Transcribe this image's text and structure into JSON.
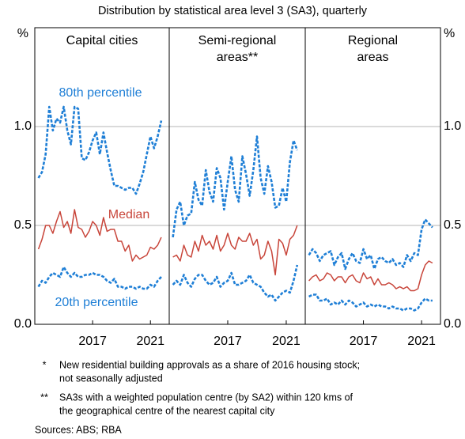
{
  "subtitle": "Distribution by statistical area level 3 (SA3), quarterly",
  "notes": [
    {
      "marker": "*",
      "lines": [
        "New residential building approvals as a share of 2016 housing stock;",
        "not seasonally adjusted"
      ]
    },
    {
      "marker": "**",
      "lines": [
        "SA3s with a weighted population centre (by SA2) within 120 kms of",
        "the geographical centre of the nearest capital city"
      ]
    }
  ],
  "sources": "Sources: ABS; RBA",
  "chart_data": [
    {
      "type": "line",
      "title": [
        "Capital cities"
      ],
      "y_unit": "%",
      "x": [
        2013.25,
        2013.5,
        2013.75,
        2014,
        2014.25,
        2014.5,
        2014.75,
        2015,
        2015.25,
        2015.5,
        2015.75,
        2016,
        2016.25,
        2016.5,
        2016.75,
        2017,
        2017.25,
        2017.5,
        2017.75,
        2018,
        2018.25,
        2018.5,
        2018.75,
        2019,
        2019.25,
        2019.5,
        2019.75,
        2020,
        2020.25,
        2020.5,
        2020.75,
        2021,
        2021.25,
        2021.5,
        2021.75
      ],
      "xlim": [
        2013.0,
        2022.3
      ],
      "xticks": [
        2017,
        2021
      ],
      "ylim": [
        0,
        1.5
      ],
      "yticks": [
        {
          "value": 0,
          "label": "0.0"
        },
        0.5,
        {
          "value": 1,
          "label": "1.0"
        }
      ],
      "series": [
        {
          "name": "80th percentile",
          "color": "#1f7fd6",
          "style": "dashed",
          "values": [
            0.74,
            0.77,
            0.86,
            1.1,
            0.98,
            1.04,
            1.02,
            1.1,
            0.98,
            0.91,
            1.1,
            1.09,
            0.84,
            0.83,
            0.87,
            0.93,
            0.97,
            0.86,
            0.97,
            0.87,
            0.78,
            0.7,
            0.7,
            0.69,
            0.68,
            0.69,
            0.69,
            0.66,
            0.71,
            0.77,
            0.86,
            0.95,
            0.89,
            0.95,
            1.03
          ]
        },
        {
          "name": "Median",
          "color": "#c8453a",
          "style": "solid",
          "values": [
            0.38,
            0.43,
            0.5,
            0.5,
            0.46,
            0.52,
            0.57,
            0.49,
            0.52,
            0.46,
            0.58,
            0.49,
            0.48,
            0.44,
            0.47,
            0.52,
            0.5,
            0.45,
            0.54,
            0.47,
            0.48,
            0.48,
            0.42,
            0.42,
            0.37,
            0.4,
            0.32,
            0.35,
            0.33,
            0.34,
            0.35,
            0.39,
            0.38,
            0.4,
            0.44
          ]
        },
        {
          "name": "20th percentile",
          "color": "#1f7fd6",
          "style": "dashed",
          "values": [
            0.19,
            0.22,
            0.21,
            0.24,
            0.26,
            0.25,
            0.24,
            0.29,
            0.26,
            0.24,
            0.26,
            0.24,
            0.24,
            0.25,
            0.25,
            0.26,
            0.25,
            0.25,
            0.24,
            0.22,
            0.21,
            0.23,
            0.19,
            0.19,
            0.18,
            0.19,
            0.19,
            0.18,
            0.19,
            0.18,
            0.18,
            0.2,
            0.19,
            0.22,
            0.24
          ]
        }
      ]
    },
    {
      "type": "line",
      "title": [
        "Semi-regional",
        "areas**"
      ],
      "x": [
        2013.25,
        2013.5,
        2013.75,
        2014,
        2014.25,
        2014.5,
        2014.75,
        2015,
        2015.25,
        2015.5,
        2015.75,
        2016,
        2016.25,
        2016.5,
        2016.75,
        2017,
        2017.25,
        2017.5,
        2017.75,
        2018,
        2018.25,
        2018.5,
        2018.75,
        2019,
        2019.25,
        2019.5,
        2019.75,
        2020,
        2020.25,
        2020.5,
        2020.75,
        2021,
        2021.25,
        2021.5,
        2021.75
      ],
      "xlim": [
        2013.0,
        2022.3
      ],
      "xticks": [
        2017,
        2021
      ],
      "ylim": [
        0,
        1.5
      ],
      "yticks": [
        {
          "value": 0,
          "label": "0.0"
        },
        0.5,
        {
          "value": 1,
          "label": "1.0"
        }
      ],
      "series": [
        {
          "color": "#1f7fd6",
          "style": "dashed",
          "values": [
            0.44,
            0.58,
            0.62,
            0.5,
            0.55,
            0.56,
            0.72,
            0.63,
            0.6,
            0.78,
            0.67,
            0.62,
            0.79,
            0.74,
            0.58,
            0.72,
            0.85,
            0.68,
            0.62,
            0.85,
            0.76,
            0.65,
            0.78,
            0.95,
            0.74,
            0.66,
            0.8,
            0.72,
            0.59,
            0.6,
            0.69,
            0.62,
            0.82,
            0.93,
            0.88
          ]
        },
        {
          "color": "#c8453a",
          "style": "solid",
          "values": [
            0.34,
            0.35,
            0.32,
            0.4,
            0.35,
            0.34,
            0.42,
            0.37,
            0.45,
            0.4,
            0.42,
            0.38,
            0.45,
            0.37,
            0.4,
            0.46,
            0.4,
            0.38,
            0.44,
            0.42,
            0.42,
            0.46,
            0.4,
            0.43,
            0.33,
            0.35,
            0.42,
            0.37,
            0.25,
            0.43,
            0.41,
            0.35,
            0.43,
            0.45,
            0.5
          ]
        },
        {
          "color": "#1f7fd6",
          "style": "dashed",
          "values": [
            0.2,
            0.22,
            0.2,
            0.25,
            0.21,
            0.19,
            0.23,
            0.25,
            0.25,
            0.22,
            0.2,
            0.21,
            0.24,
            0.19,
            0.21,
            0.22,
            0.26,
            0.2,
            0.2,
            0.21,
            0.22,
            0.25,
            0.21,
            0.2,
            0.19,
            0.16,
            0.14,
            0.15,
            0.12,
            0.14,
            0.16,
            0.17,
            0.16,
            0.22,
            0.3
          ]
        }
      ]
    },
    {
      "type": "line",
      "title": [
        "Regional",
        "areas"
      ],
      "y_unit": "%",
      "x": [
        2013.25,
        2013.5,
        2013.75,
        2014,
        2014.25,
        2014.5,
        2014.75,
        2015,
        2015.25,
        2015.5,
        2015.75,
        2016,
        2016.25,
        2016.5,
        2016.75,
        2017,
        2017.25,
        2017.5,
        2017.75,
        2018,
        2018.25,
        2018.5,
        2018.75,
        2019,
        2019.25,
        2019.5,
        2019.75,
        2020,
        2020.25,
        2020.5,
        2020.75,
        2021,
        2021.25,
        2021.5,
        2021.75
      ],
      "xlim": [
        2013.0,
        2022.3
      ],
      "xticks": [
        2017,
        2021
      ],
      "ylim": [
        0,
        1.5
      ],
      "yticks": [
        {
          "value": 0,
          "label": "0.0"
        },
        0.5,
        {
          "value": 1,
          "label": "1.0"
        }
      ],
      "series": [
        {
          "color": "#1f7fd6",
          "style": "dashed",
          "values": [
            0.35,
            0.38,
            0.36,
            0.32,
            0.35,
            0.36,
            0.37,
            0.3,
            0.34,
            0.36,
            0.28,
            0.33,
            0.36,
            0.32,
            0.31,
            0.38,
            0.33,
            0.35,
            0.28,
            0.33,
            0.34,
            0.32,
            0.31,
            0.33,
            0.3,
            0.31,
            0.29,
            0.35,
            0.32,
            0.36,
            0.35,
            0.48,
            0.53,
            0.51,
            0.49
          ]
        },
        {
          "color": "#c8453a",
          "style": "solid",
          "values": [
            0.22,
            0.24,
            0.25,
            0.22,
            0.23,
            0.26,
            0.25,
            0.22,
            0.24,
            0.24,
            0.21,
            0.24,
            0.25,
            0.22,
            0.21,
            0.26,
            0.23,
            0.24,
            0.2,
            0.23,
            0.2,
            0.2,
            0.21,
            0.2,
            0.18,
            0.19,
            0.18,
            0.19,
            0.17,
            0.17,
            0.18,
            0.25,
            0.3,
            0.32,
            0.31
          ]
        },
        {
          "color": "#1f7fd6",
          "style": "dashed",
          "values": [
            0.14,
            0.15,
            0.15,
            0.12,
            0.12,
            0.13,
            0.1,
            0.11,
            0.1,
            0.12,
            0.1,
            0.12,
            0.11,
            0.09,
            0.1,
            0.11,
            0.09,
            0.1,
            0.09,
            0.1,
            0.09,
            0.09,
            0.08,
            0.09,
            0.08,
            0.08,
            0.07,
            0.08,
            0.08,
            0.07,
            0.08,
            0.11,
            0.13,
            0.12,
            0.12
          ]
        }
      ]
    }
  ]
}
